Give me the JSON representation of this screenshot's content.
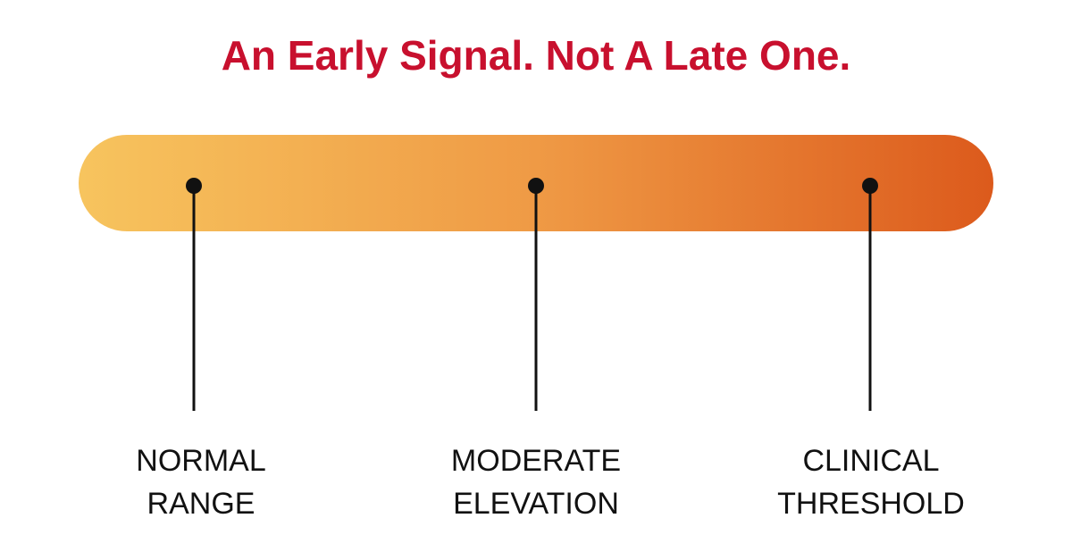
{
  "title": "An Early Signal. Not A Late One.",
  "markers": [
    {
      "label": [
        "NORMAL",
        "RANGE"
      ]
    },
    {
      "label": [
        "MODERATE",
        "ELEVATION"
      ]
    },
    {
      "label": [
        "CLINICAL",
        "THRESHOLD"
      ]
    }
  ]
}
